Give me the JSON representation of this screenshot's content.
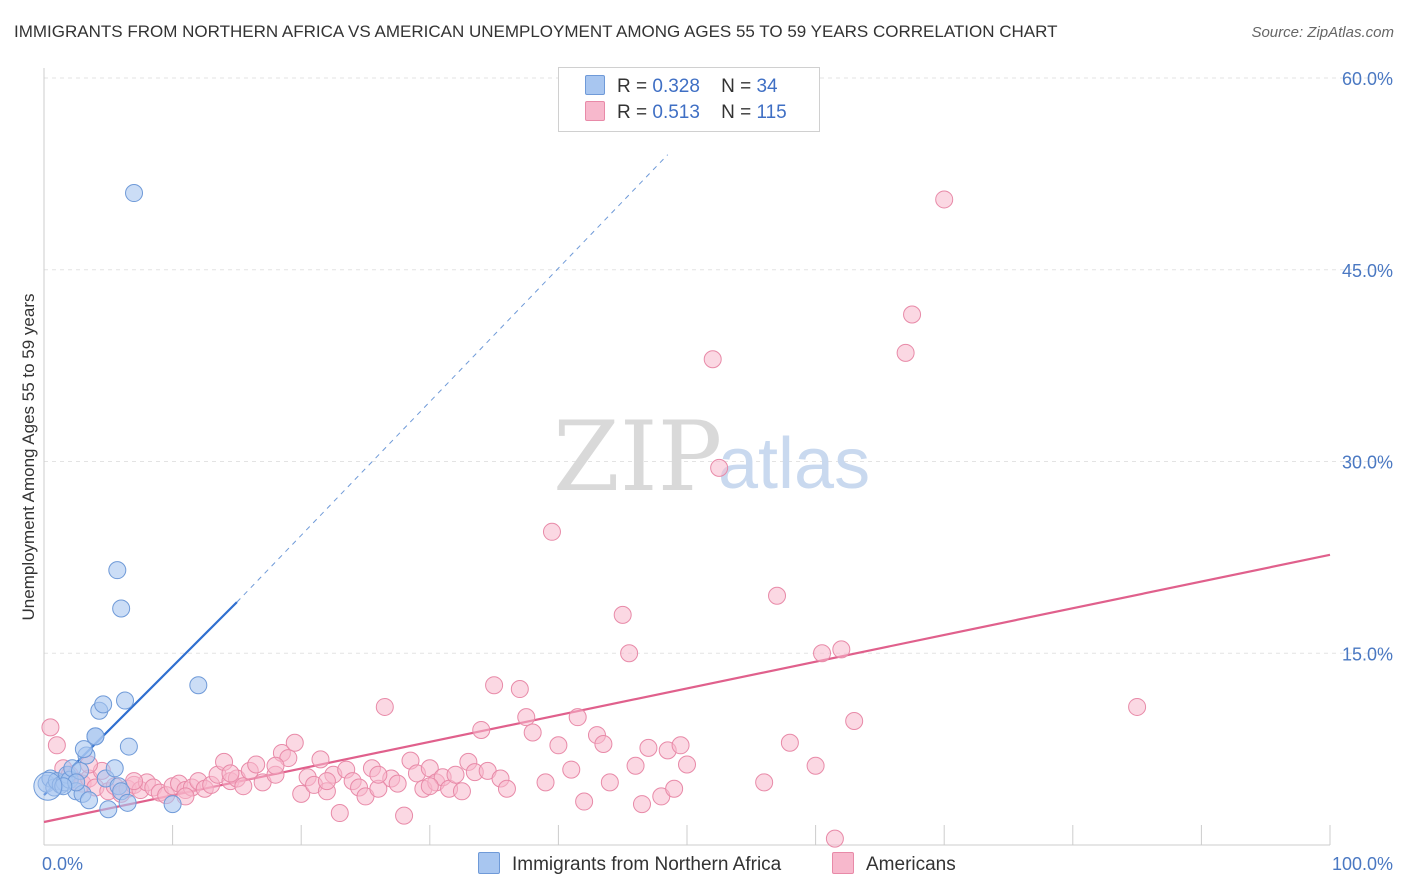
{
  "title": "IMMIGRANTS FROM NORTHERN AFRICA VS AMERICAN UNEMPLOYMENT AMONG AGES 55 TO 59 YEARS CORRELATION CHART",
  "source": "Source: ZipAtlas.com",
  "watermark": {
    "zip": "ZIP",
    "atlas": "atlas"
  },
  "colors": {
    "blue_fill": "#a8c6f0",
    "blue_stroke": "#6f9ad8",
    "blue_line": "#2f6fd0",
    "pink_fill": "#f7b8cc",
    "pink_stroke": "#e88aa8",
    "pink_line": "#e0608c",
    "grid": "#e3e3e3",
    "tick_text": "#4a78c2"
  },
  "legend": {
    "blue": {
      "r_label": "R =",
      "r_value": "0.328",
      "n_label": "N =",
      "n_value": "34"
    },
    "pink": {
      "r_label": "R =",
      "r_value": "0.513",
      "n_label": "N =",
      "n_value": "115"
    }
  },
  "chart_data": {
    "type": "scatter",
    "title": "IMMIGRANTS FROM NORTHERN AFRICA VS AMERICAN UNEMPLOYMENT AMONG AGES 55 TO 59 YEARS CORRELATION CHART",
    "xlabel": "",
    "ylabel": "Unemployment Among Ages 55 to 59 years",
    "xlim": [
      0,
      100
    ],
    "ylim": [
      0,
      60
    ],
    "x_tick_labels": [
      {
        "value": 0,
        "label": "0.0%"
      },
      {
        "value": 100,
        "label": "100.0%"
      }
    ],
    "y_tick_labels": [
      {
        "value": 15,
        "label": "15.0%"
      },
      {
        "value": 30,
        "label": "30.0%"
      },
      {
        "value": 45,
        "label": "45.0%"
      },
      {
        "value": 60,
        "label": "60.0%"
      }
    ],
    "grid": true,
    "legend_position": "top-center",
    "series": [
      {
        "name": "Immigrants from Northern Africa",
        "color": "#a8c6f0",
        "trend": {
          "x0": 0,
          "y0": 3.9,
          "x1": 15,
          "y1": 19.0,
          "dash_to_x": 48.5,
          "dash_to_y": 54.0
        },
        "points": [
          [
            0.2,
            4.8
          ],
          [
            0.5,
            5.2
          ],
          [
            0.8,
            4.5
          ],
          [
            1.0,
            5.0
          ],
          [
            1.3,
            4.7
          ],
          [
            1.6,
            4.9
          ],
          [
            1.8,
            5.5
          ],
          [
            2.0,
            5.1
          ],
          [
            2.2,
            6.0
          ],
          [
            2.5,
            4.2
          ],
          [
            2.8,
            5.8
          ],
          [
            3.0,
            4.0
          ],
          [
            3.3,
            7.0
          ],
          [
            3.5,
            3.5
          ],
          [
            4.0,
            8.5
          ],
          [
            4.3,
            10.5
          ],
          [
            4.6,
            11.0
          ],
          [
            3.1,
            7.5
          ],
          [
            4.8,
            5.2
          ],
          [
            5.5,
            6.0
          ],
          [
            5.8,
            4.6
          ],
          [
            6.0,
            4.2
          ],
          [
            6.5,
            3.3
          ],
          [
            6.3,
            11.3
          ],
          [
            6.6,
            7.7
          ],
          [
            7.0,
            51.0
          ],
          [
            5.0,
            2.8
          ],
          [
            6.0,
            18.5
          ],
          [
            5.7,
            21.5
          ],
          [
            10.0,
            3.2
          ],
          [
            12.0,
            12.5
          ],
          [
            4.0,
            8.5
          ],
          [
            2.5,
            4.9
          ],
          [
            1.5,
            4.6
          ]
        ]
      },
      {
        "name": "Americans",
        "color": "#f7b8cc",
        "trend": {
          "x0": 0,
          "y0": 1.8,
          "x1": 100,
          "y1": 22.7
        },
        "points": [
          [
            0.5,
            9.2
          ],
          [
            1.0,
            7.8
          ],
          [
            1.5,
            6.0
          ],
          [
            2.0,
            5.5
          ],
          [
            2.5,
            5.0
          ],
          [
            3.0,
            4.8
          ],
          [
            3.5,
            5.2
          ],
          [
            4.0,
            4.5
          ],
          [
            4.5,
            5.8
          ],
          [
            5.0,
            4.2
          ],
          [
            5.5,
            4.6
          ],
          [
            6.0,
            4.0
          ],
          [
            6.5,
            4.4
          ],
          [
            7.0,
            4.7
          ],
          [
            7.5,
            4.3
          ],
          [
            8.0,
            4.9
          ],
          [
            8.5,
            4.5
          ],
          [
            9.0,
            4.1
          ],
          [
            9.5,
            3.9
          ],
          [
            10.0,
            4.6
          ],
          [
            10.5,
            4.8
          ],
          [
            11.0,
            4.3
          ],
          [
            11.5,
            4.5
          ],
          [
            12.0,
            5.0
          ],
          [
            12.5,
            4.4
          ],
          [
            13.0,
            4.7
          ],
          [
            13.5,
            5.5
          ],
          [
            14.0,
            6.5
          ],
          [
            14.5,
            5.0
          ],
          [
            15.0,
            5.2
          ],
          [
            15.5,
            4.6
          ],
          [
            16.0,
            5.8
          ],
          [
            16.5,
            6.3
          ],
          [
            17.0,
            4.9
          ],
          [
            18.0,
            5.5
          ],
          [
            18.5,
            7.2
          ],
          [
            19.0,
            6.8
          ],
          [
            19.5,
            8.0
          ],
          [
            20.0,
            4.0
          ],
          [
            20.5,
            5.3
          ],
          [
            21.0,
            4.7
          ],
          [
            21.5,
            6.7
          ],
          [
            22.0,
            4.2
          ],
          [
            22.5,
            5.5
          ],
          [
            23.0,
            2.5
          ],
          [
            23.5,
            5.9
          ],
          [
            24.0,
            5.0
          ],
          [
            24.5,
            4.5
          ],
          [
            25.0,
            3.8
          ],
          [
            25.5,
            6.0
          ],
          [
            26.0,
            4.4
          ],
          [
            26.5,
            10.8
          ],
          [
            27.0,
            5.2
          ],
          [
            27.5,
            4.8
          ],
          [
            28.0,
            2.3
          ],
          [
            28.5,
            6.6
          ],
          [
            29.0,
            5.6
          ],
          [
            29.5,
            4.4
          ],
          [
            30.0,
            6.0
          ],
          [
            30.5,
            4.9
          ],
          [
            31.0,
            5.3
          ],
          [
            31.5,
            4.4
          ],
          [
            32.0,
            5.5
          ],
          [
            32.5,
            4.2
          ],
          [
            33.0,
            6.5
          ],
          [
            33.5,
            5.7
          ],
          [
            34.0,
            9.0
          ],
          [
            34.5,
            5.8
          ],
          [
            35.0,
            12.5
          ],
          [
            35.5,
            5.2
          ],
          [
            36.0,
            4.4
          ],
          [
            37.0,
            12.2
          ],
          [
            37.5,
            10.0
          ],
          [
            38.0,
            8.8
          ],
          [
            39.0,
            4.9
          ],
          [
            39.5,
            24.5
          ],
          [
            40.0,
            7.8
          ],
          [
            41.0,
            5.9
          ],
          [
            41.5,
            10.0
          ],
          [
            42.0,
            3.4
          ],
          [
            43.0,
            8.6
          ],
          [
            43.5,
            7.9
          ],
          [
            44.0,
            4.9
          ],
          [
            45.0,
            18.0
          ],
          [
            45.5,
            15.0
          ],
          [
            46.0,
            6.2
          ],
          [
            46.5,
            3.2
          ],
          [
            47.0,
            7.6
          ],
          [
            48.0,
            3.8
          ],
          [
            48.5,
            7.4
          ],
          [
            49.0,
            4.4
          ],
          [
            49.5,
            7.8
          ],
          [
            50.0,
            6.3
          ],
          [
            52.0,
            38.0
          ],
          [
            52.5,
            29.5
          ],
          [
            56.0,
            4.9
          ],
          [
            57.0,
            19.5
          ],
          [
            58.0,
            8.0
          ],
          [
            60.0,
            6.2
          ],
          [
            60.5,
            15.0
          ],
          [
            61.5,
            0.5
          ],
          [
            62.0,
            15.3
          ],
          [
            63.0,
            9.7
          ],
          [
            67.0,
            38.5
          ],
          [
            67.5,
            41.5
          ],
          [
            70.0,
            50.5
          ],
          [
            85.0,
            10.8
          ],
          [
            14.5,
            5.6
          ],
          [
            18.0,
            6.2
          ],
          [
            22.0,
            5.0
          ],
          [
            26.0,
            5.5
          ],
          [
            30.0,
            4.6
          ],
          [
            11.0,
            3.8
          ],
          [
            7.0,
            5.0
          ],
          [
            3.5,
            6.3
          ]
        ]
      }
    ]
  }
}
